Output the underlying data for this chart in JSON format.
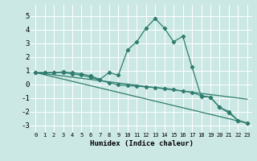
{
  "xlabel": "Humidex (Indice chaleur)",
  "bg_color": "#cce8e5",
  "grid_color": "#ffffff",
  "line_color": "#2e7d6e",
  "xlim": [
    -0.5,
    23.5
  ],
  "ylim": [
    -3.5,
    5.8
  ],
  "yticks": [
    -3,
    -2,
    -1,
    0,
    1,
    2,
    3,
    4,
    5
  ],
  "xticks": [
    0,
    1,
    2,
    3,
    4,
    5,
    6,
    7,
    8,
    9,
    10,
    11,
    12,
    13,
    14,
    15,
    16,
    17,
    18,
    19,
    20,
    21,
    22,
    23
  ],
  "series": [
    {
      "x": [
        0,
        1,
        2,
        3,
        4,
        5,
        6,
        7,
        8,
        9,
        10,
        11,
        12,
        13,
        14,
        15,
        16,
        17,
        18,
        19,
        20,
        21,
        22,
        23
      ],
      "y": [
        0.85,
        0.85,
        0.85,
        0.9,
        0.85,
        0.75,
        0.6,
        0.35,
        0.85,
        0.65,
        2.5,
        3.1,
        4.1,
        4.8,
        4.1,
        3.1,
        3.5,
        1.25,
        -0.9,
        -0.95,
        -1.7,
        -2.1,
        -2.65,
        -2.85
      ],
      "has_markers": true
    },
    {
      "x": [
        0,
        23
      ],
      "y": [
        0.85,
        -1.1
      ],
      "has_markers": false
    },
    {
      "x": [
        0,
        23
      ],
      "y": [
        0.85,
        -2.85
      ],
      "has_markers": false
    },
    {
      "x": [
        0,
        1,
        2,
        3,
        4,
        5,
        6,
        7,
        8,
        9,
        10,
        11,
        12,
        13,
        14,
        15,
        16,
        17,
        18,
        19,
        20,
        21,
        22,
        23
      ],
      "y": [
        0.85,
        0.85,
        0.85,
        0.85,
        0.75,
        0.65,
        0.5,
        0.3,
        0.1,
        -0.05,
        -0.1,
        -0.15,
        -0.2,
        -0.25,
        -0.3,
        -0.4,
        -0.5,
        -0.6,
        -0.85,
        -0.95,
        -1.7,
        -2.0,
        -2.65,
        -2.85
      ],
      "has_markers": true
    }
  ]
}
